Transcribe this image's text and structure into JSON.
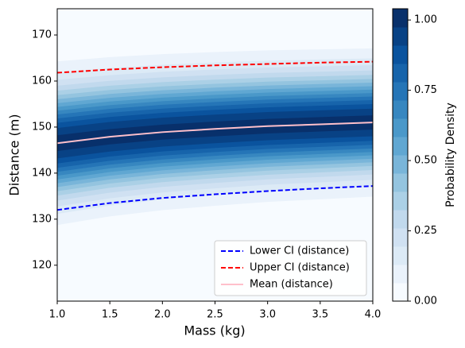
{
  "chart_data": {
    "type": "contour",
    "xlabel": "Mass (kg)",
    "ylabel": "Distance (m)",
    "x": [
      1.0,
      1.5,
      2.0,
      2.5,
      3.0,
      3.5,
      4.0
    ],
    "series": [
      {
        "name": "Lower CI (distance)",
        "color": "#0000ff",
        "linestyle": "dashed",
        "values": [
          132.0,
          133.5,
          134.6,
          135.4,
          136.1,
          136.7,
          137.2
        ]
      },
      {
        "name": "Upper CI (distance)",
        "color": "#ff0000",
        "linestyle": "dashed",
        "values": [
          161.8,
          162.5,
          163.0,
          163.4,
          163.7,
          164.0,
          164.2
        ]
      },
      {
        "name": "Mean (distance)",
        "color": "#ffc0cb",
        "linestyle": "solid",
        "values": [
          146.5,
          147.9,
          148.9,
          149.6,
          150.2,
          150.6,
          151.0
        ]
      }
    ],
    "xlim": [
      1.0,
      4.0
    ],
    "xticks": [
      {
        "value": 1.0,
        "label": "1.0"
      },
      1.5,
      {
        "value": 2.0,
        "label": "2.0"
      },
      2.5,
      {
        "value": 3.0,
        "label": "3.0"
      },
      3.5,
      {
        "value": 4.0,
        "label": "4.0"
      }
    ],
    "ylim": [
      112.2,
      175.7
    ],
    "yticks": [
      120,
      130,
      140,
      150,
      160,
      170
    ],
    "legend": "lower right",
    "colorbar": {
      "label": "Probability Density",
      "colormap": "Blues",
      "lim": [
        0,
        1.04
      ],
      "levels": [
        0,
        0.065,
        0.13,
        0.195,
        0.26,
        0.325,
        0.39,
        0.455,
        0.52,
        0.585,
        0.65,
        0.715,
        0.78,
        0.845,
        0.91,
        0.975,
        1.04
      ],
      "ticks": [
        {
          "value": 0,
          "label": "0.00"
        },
        {
          "value": 0.25,
          "label": "0.25"
        },
        {
          "value": 0.5,
          "label": "0.50"
        },
        {
          "value": 0.75,
          "label": "0.75"
        },
        {
          "value": 1.0,
          "label": "1.00"
        }
      ]
    }
  }
}
